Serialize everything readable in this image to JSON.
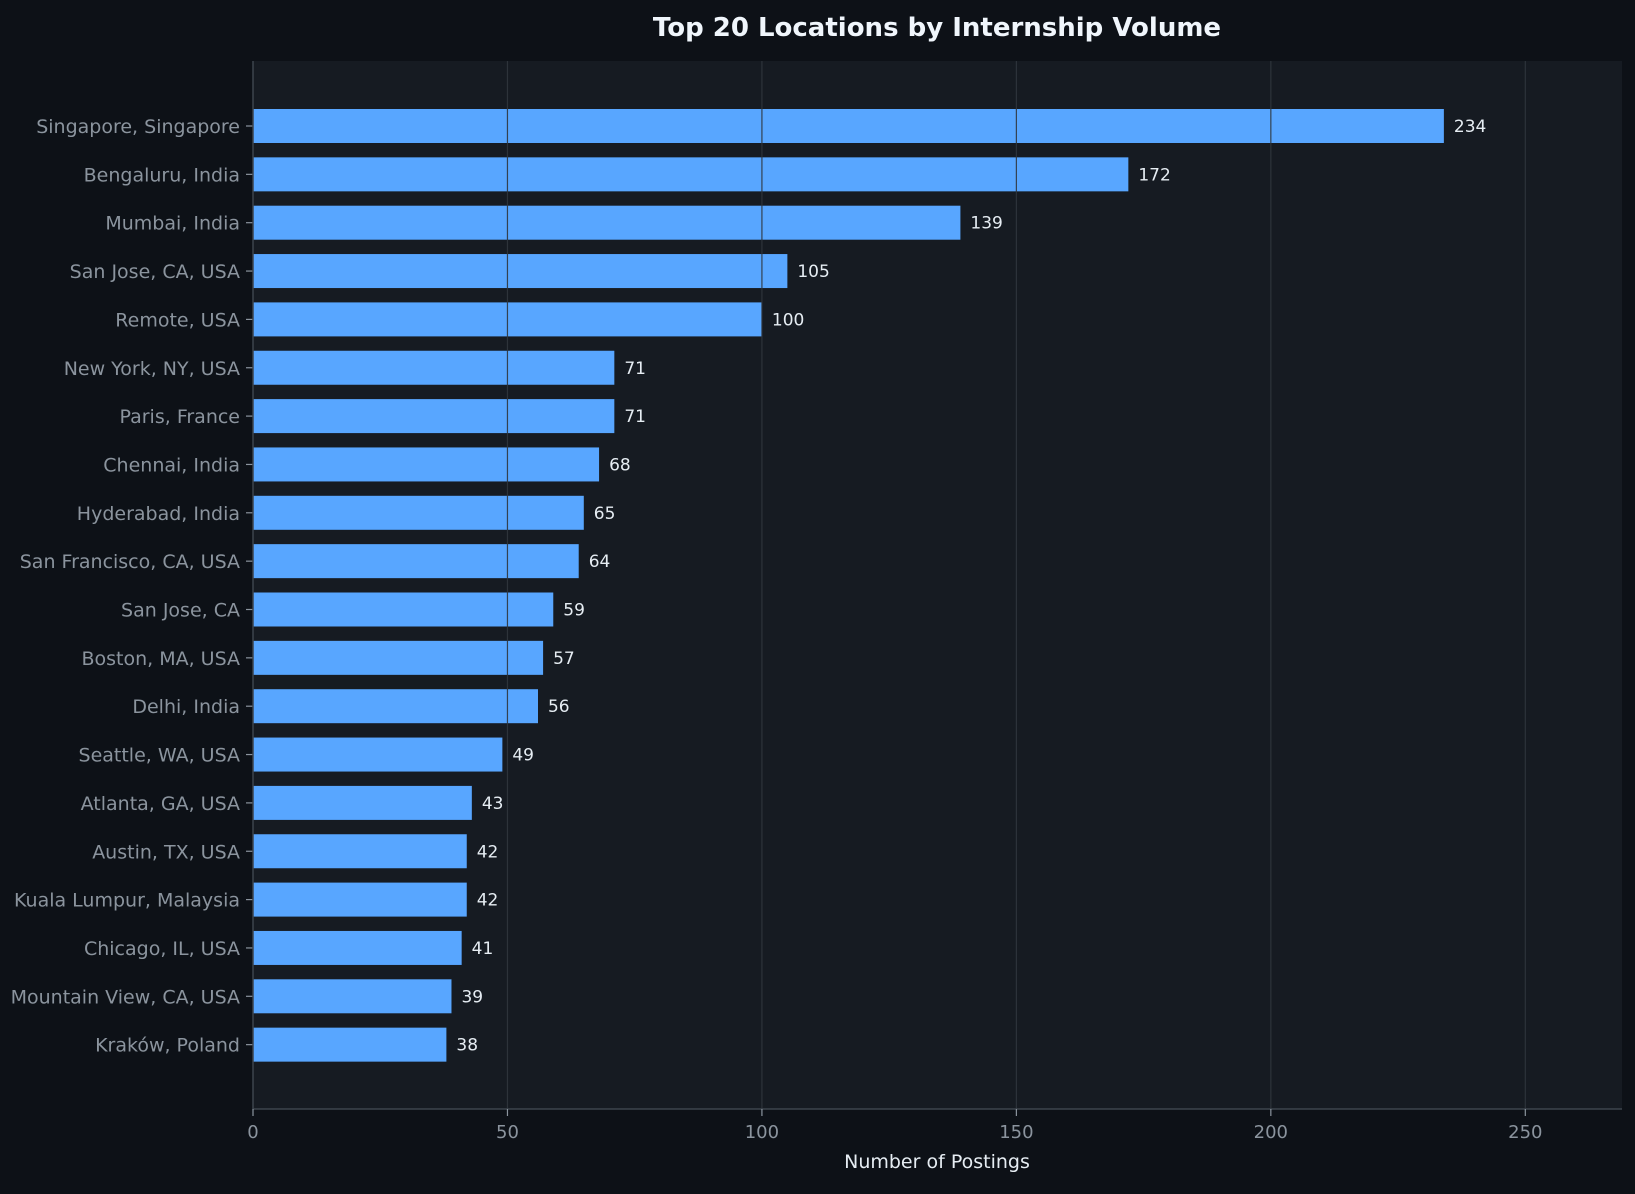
{
  "colors": {
    "page_background": "#0d1117",
    "plot_background": "#161b22",
    "bar": "#58a6ff",
    "grid": "#30363d",
    "axis": "#3d444d",
    "title_text": "#f0f6fc",
    "tick_text": "#8b949e",
    "value_text": "#e6edf3",
    "xlabel_text": "#e6edf3"
  },
  "chart_data": {
    "type": "bar",
    "orientation": "horizontal",
    "title": "Top 20 Locations by Internship Volume",
    "xlabel": "Number of Postings",
    "ylabel": "",
    "xlim": [
      0,
      269
    ],
    "xticks": [
      0,
      50,
      100,
      150,
      200,
      250
    ],
    "grid": true,
    "categories": [
      "Singapore, Singapore",
      "Bengaluru, India",
      "Mumbai, India",
      "San Jose, CA, USA",
      "Remote, USA",
      "New York, NY, USA",
      "Paris, France",
      "Chennai, India",
      "Hyderabad, India",
      "San Francisco, CA, USA",
      "San Jose, CA",
      "Boston, MA, USA",
      "Delhi, India",
      "Seattle, WA, USA",
      "Atlanta, GA, USA",
      "Austin, TX, USA",
      "Kuala Lumpur, Malaysia",
      "Chicago, IL, USA",
      "Mountain View, CA, USA",
      "Kraków, Poland"
    ],
    "values": [
      234,
      172,
      139,
      105,
      100,
      71,
      71,
      68,
      65,
      64,
      59,
      57,
      56,
      49,
      43,
      42,
      42,
      41,
      39,
      38
    ]
  }
}
